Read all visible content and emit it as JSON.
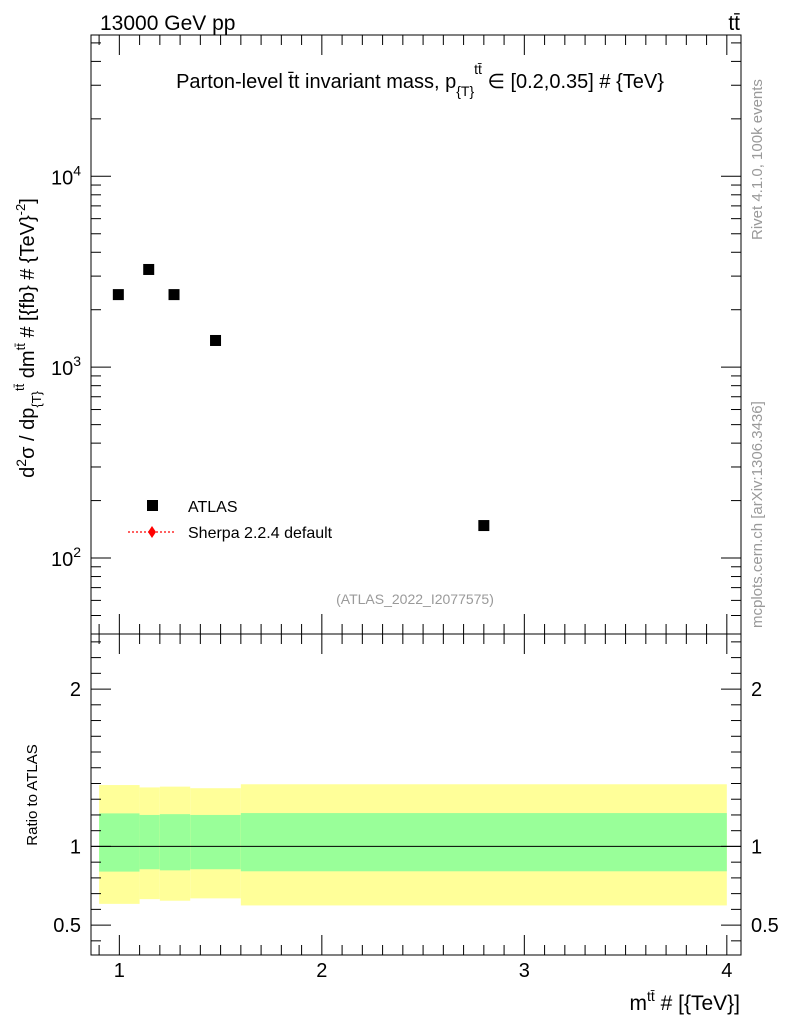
{
  "header": {
    "left": "13000 GeV pp",
    "right": "tt̄"
  },
  "side_labels": {
    "top": "Rivet 4.1.0,  100k events",
    "bottom": "mcplots.cern.ch [arXiv:1306.3436]"
  },
  "chart_data": [
    {
      "type": "scatter",
      "title": "Parton-level t̄t invariant mass, p_{T}^{tt̄} ∈ [0.2,0.35] # {TeV}",
      "title_parts": {
        "main": "Parton-level t̄t invariant mass, p",
        "sub": "{T}",
        "sup": "tt̄",
        "tail": " ∈ [0.2,0.35] # {TeV}"
      },
      "ylabel": "d²σ / dp_{T}^{tt̄} dm^{tt̄} # [{fb} # {TeV}⁻²]",
      "ylabel_parts": {
        "a": "d",
        "a_sup": "2",
        "b": "σ / dp",
        "b_sub": "{T}",
        "b_sup": "tt̄",
        "c": " dm",
        "c_sup": "tt̄",
        "d": " # [{fb} # {TeV}",
        "d_sup": "-2",
        "e": "]"
      },
      "yscale": "log",
      "xlim": [
        0.86,
        4.07
      ],
      "ylim": [
        40,
        55000
      ],
      "y_major_ticks": [
        {
          "value": 100,
          "base": "10",
          "exp": "2"
        },
        {
          "value": 1000,
          "base": "10",
          "exp": "3"
        },
        {
          "value": 10000,
          "base": "10",
          "exp": "4"
        }
      ],
      "watermark": "(ATLAS_2022_I2077575)",
      "legend": [
        {
          "label": "ATLAS",
          "marker": "square",
          "color": "#000000"
        },
        {
          "label": "Sherpa 2.2.4 default",
          "marker": "diamond",
          "line": "dotted",
          "color": "#ff0000"
        }
      ],
      "series": [
        {
          "name": "ATLAS",
          "x": [
            0.995,
            1.145,
            1.27,
            1.475,
            2.8
          ],
          "y": [
            2400,
            3250,
            2400,
            1380,
            148
          ]
        }
      ]
    },
    {
      "type": "area",
      "ylabel": "Ratio to ATLAS",
      "xlabel": "m^{tt̄} # [{TeV}]",
      "xlabel_parts": {
        "a": "m",
        "a_sup": "tt̄",
        "b": " # [{TeV}]"
      },
      "xlim": [
        0.86,
        4.07
      ],
      "ylim": [
        0.31,
        2.35
      ],
      "x_tick_labels": [
        "1",
        "2",
        "3",
        "4"
      ],
      "y_tick_labels": [
        "0.5",
        "1",
        "2"
      ],
      "reference_line": 1,
      "bins": [
        0.9,
        1.1,
        1.2,
        1.35,
        1.6,
        4.0
      ],
      "band_yellow": {
        "low": [
          0.635,
          0.665,
          0.655,
          0.67,
          0.625
        ],
        "high": [
          1.39,
          1.375,
          1.38,
          1.37,
          1.395
        ],
        "color": "#ffff99"
      },
      "band_green": {
        "low": [
          0.84,
          0.855,
          0.848,
          0.855,
          0.842
        ],
        "high": [
          1.21,
          1.2,
          1.205,
          1.2,
          1.212
        ],
        "color": "#99ff99"
      }
    }
  ]
}
